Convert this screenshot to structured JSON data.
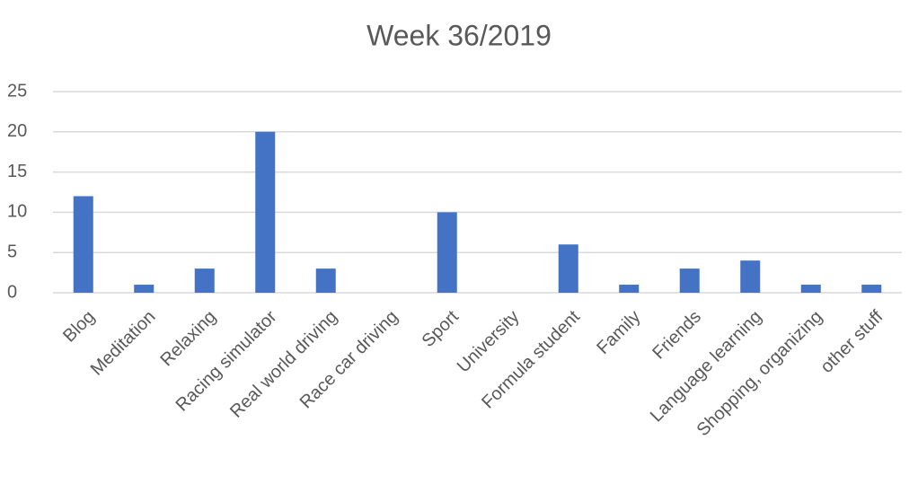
{
  "chart_data": {
    "type": "bar",
    "title": "Week 36/2019",
    "categories": [
      "Blog",
      "Meditation",
      "Relaxing",
      "Racing simulator",
      "Real world driving",
      "Race car driving",
      "Sport",
      "University",
      "Formula student",
      "Family",
      "Friends",
      "Language learning",
      "Shopping, organizing",
      "other stuff"
    ],
    "values": [
      12,
      1,
      3,
      20,
      3,
      0,
      10,
      0,
      6,
      1,
      3,
      4,
      1,
      1
    ],
    "color": "#4472c4",
    "ylim": [
      0,
      25
    ],
    "yticks": [
      0,
      5,
      10,
      15,
      20,
      25
    ],
    "grid": true
  }
}
